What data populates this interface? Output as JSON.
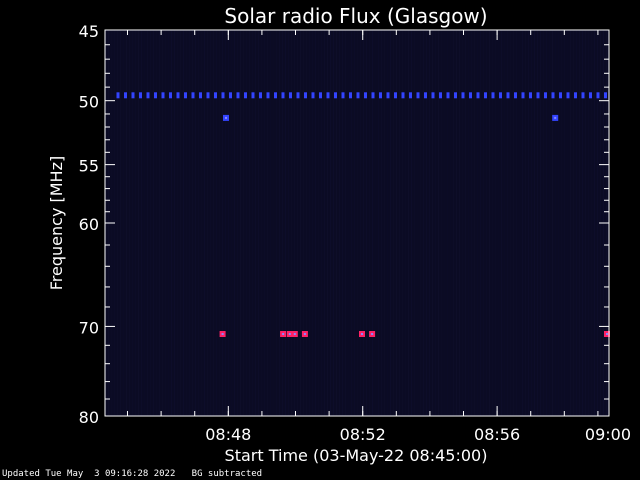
{
  "chart_data": {
    "type": "heatmap",
    "title": "Solar radio Flux (Glasgow)",
    "xlabel": "Start Time (03-May-22 08:45:00)",
    "ylabel": "Frequency [MHz]",
    "x_range_minutes": [
      0,
      15
    ],
    "x_ticks": [
      {
        "minute": 3.67,
        "label": "08:48"
      },
      {
        "minute": 7.67,
        "label": "08:52"
      },
      {
        "minute": 11.67,
        "label": "08:56"
      },
      {
        "minute": 15,
        "label": "09:00"
      }
    ],
    "y_scale": "log",
    "ylim": [
      45,
      80
    ],
    "y_major_ticks": [
      45,
      50,
      55,
      60,
      70,
      80
    ],
    "y_minor_ticks": [
      46,
      47,
      48,
      49,
      51,
      52,
      53,
      54,
      56,
      57,
      58,
      59,
      62,
      64,
      66,
      68,
      72,
      74,
      76,
      78
    ],
    "background_color": "#0b0b24",
    "features": [
      {
        "kind": "periodic-band",
        "frequency_mhz": 49.6,
        "color": "#3344ff"
      },
      {
        "kind": "burst",
        "frequency_mhz": 51.3,
        "minute": 3.6,
        "color": "#3344ff"
      },
      {
        "kind": "burst",
        "frequency_mhz": 51.3,
        "minute": 13.4,
        "color": "#3344ff"
      },
      {
        "kind": "burst",
        "frequency_mhz": 70.8,
        "minute": 3.5,
        "color": "#ff2266"
      },
      {
        "kind": "burst",
        "frequency_mhz": 70.8,
        "minute": 5.3,
        "color": "#ff2266"
      },
      {
        "kind": "burst",
        "frequency_mhz": 70.8,
        "minute": 5.5,
        "color": "#ff2266"
      },
      {
        "kind": "burst",
        "frequency_mhz": 70.8,
        "minute": 5.65,
        "color": "#ff2266"
      },
      {
        "kind": "burst",
        "frequency_mhz": 70.8,
        "minute": 5.95,
        "color": "#ff2266"
      },
      {
        "kind": "burst",
        "frequency_mhz": 70.8,
        "minute": 7.65,
        "color": "#ff2266"
      },
      {
        "kind": "burst",
        "frequency_mhz": 70.8,
        "minute": 7.95,
        "color": "#ff2266"
      },
      {
        "kind": "burst",
        "frequency_mhz": 70.8,
        "minute": 15,
        "color": "#ff2266"
      }
    ]
  },
  "footer": {
    "updated": "Updated Tue May  3 09:16:28 2022   BG subtracted"
  }
}
